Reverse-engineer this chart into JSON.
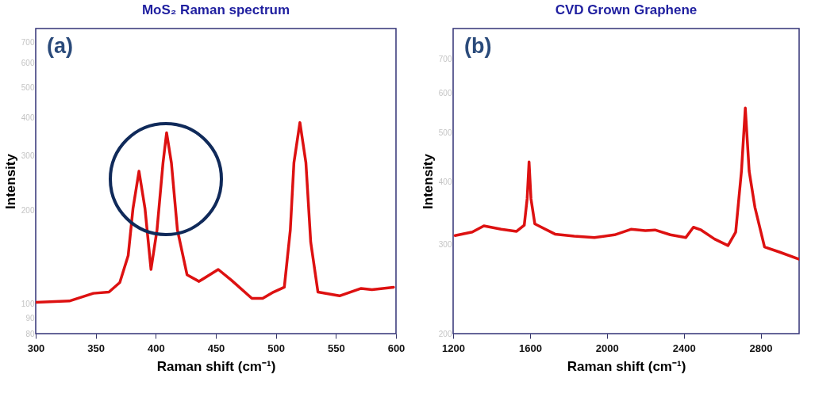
{
  "chart_data": [
    {
      "type": "line",
      "title": "MoS₂ Raman spectrum",
      "xlabel": "Raman shift (cm⁻¹)",
      "ylabel": "Intensity",
      "annotations": [
        "(a)"
      ],
      "log": true,
      "xlim": [
        300,
        600
      ],
      "xticks": [
        300,
        350,
        400,
        450,
        500,
        550,
        600
      ],
      "ylim": [
        80,
        775
      ],
      "yticks": [
        80,
        90,
        100,
        200,
        300,
        400,
        500,
        600,
        700
      ],
      "x": [
        300,
        328,
        348,
        361,
        370,
        377,
        381,
        386,
        391,
        396,
        401,
        406,
        409,
        413,
        418,
        426,
        436,
        452,
        463,
        480,
        489,
        498,
        507,
        512,
        515,
        520,
        525,
        529,
        535,
        553,
        571,
        580,
        598
      ],
      "series": [
        {
          "color": "#dd1111",
          "values": [
            101,
            102,
            108,
            109,
            117,
            143,
            203,
            268,
            203,
            129,
            173,
            285,
            357,
            285,
            173,
            124,
            118,
            129,
            119,
            104,
            104,
            109,
            113,
            173,
            285,
            385,
            285,
            158,
            109,
            106,
            112,
            111,
            113
          ]
        }
      ]
    },
    {
      "type": "line",
      "title": "CVD Grown Graphene",
      "xlabel": "Raman shift (cm⁻¹)",
      "ylabel": "Intensity",
      "annotations": [
        "(b)"
      ],
      "log": true,
      "xlim": [
        1200,
        3000
      ],
      "xticks": [
        1200,
        1600,
        2000,
        2400,
        2800
      ],
      "ylim": [
        200,
        805
      ],
      "yticks": [
        200,
        300,
        400,
        500,
        600,
        700
      ],
      "x": [
        1210,
        1300,
        1360,
        1450,
        1530,
        1570,
        1585,
        1595,
        1605,
        1625,
        1730,
        1830,
        1935,
        2040,
        2125,
        2200,
        2250,
        2330,
        2410,
        2450,
        2490,
        2560,
        2630,
        2670,
        2700,
        2720,
        2740,
        2770,
        2820,
        2900,
        3000
      ],
      "series": [
        {
          "color": "#dd1111",
          "values": [
            313,
            318,
            327,
            322,
            319,
            328,
            370,
            438,
            370,
            330,
            315,
            312,
            310,
            314,
            322,
            320,
            321,
            314,
            310,
            325,
            321,
            308,
            299,
            318,
            420,
            560,
            420,
            356,
            297,
            290,
            281
          ]
        }
      ]
    }
  ]
}
